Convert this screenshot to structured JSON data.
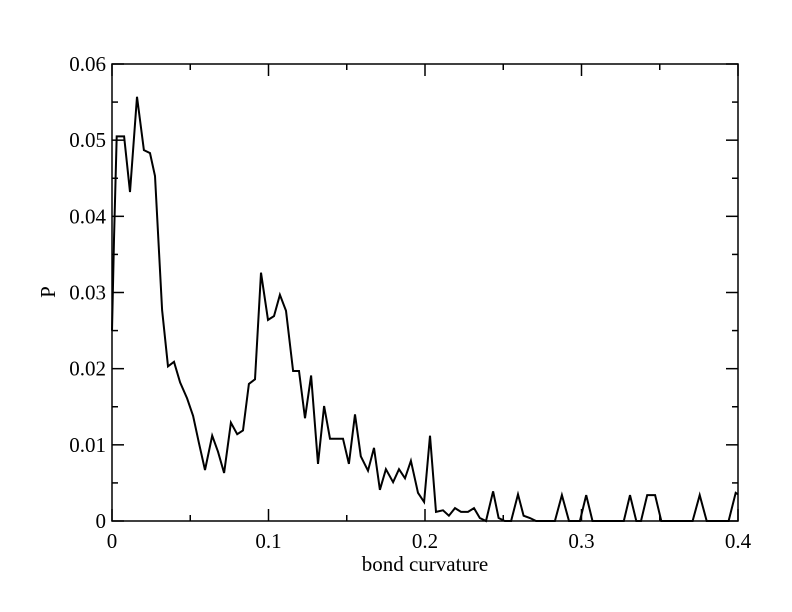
{
  "chart_data": {
    "type": "line",
    "xlabel": "bond curvature",
    "ylabel": "P",
    "x": [
      0,
      0.0013,
      0.003,
      0.0077,
      0.0115,
      0.016,
      0.0204,
      0.0243,
      0.0275,
      0.032,
      0.0358,
      0.0396,
      0.0435,
      0.048,
      0.0518,
      0.0556,
      0.0594,
      0.064,
      0.0677,
      0.0716,
      0.076,
      0.08,
      0.0837,
      0.0875,
      0.0914,
      0.0952,
      0.0997,
      0.1035,
      0.1073,
      0.1112,
      0.1157,
      0.1195,
      0.1233,
      0.1272,
      0.1316,
      0.1355,
      0.1393,
      0.143,
      0.1476,
      0.1514,
      0.1553,
      0.159,
      0.1636,
      0.1674,
      0.1712,
      0.175,
      0.1796,
      0.1834,
      0.1872,
      0.191,
      0.1955,
      0.1994,
      0.2032,
      0.207,
      0.2115,
      0.2153,
      0.2192,
      0.223,
      0.2275,
      0.2313,
      0.235,
      0.239,
      0.2435,
      0.247,
      0.251,
      0.255,
      0.2594,
      0.263,
      0.267,
      0.271,
      0.283,
      0.2875,
      0.292,
      0.299,
      0.303,
      0.307,
      0.327,
      0.331,
      0.335,
      0.338,
      0.342,
      0.347,
      0.351,
      0.371,
      0.3755,
      0.38,
      0.394,
      0.3985,
      0.4
    ],
    "values": [
      0.025,
      0.037,
      0.0505,
      0.0505,
      0.0432,
      0.0557,
      0.0487,
      0.0483,
      0.0453,
      0.0277,
      0.0203,
      0.0209,
      0.0182,
      0.0161,
      0.0138,
      0.0102,
      0.0067,
      0.0112,
      0.0091,
      0.0063,
      0.0129,
      0.0114,
      0.0119,
      0.018,
      0.0186,
      0.0326,
      0.0264,
      0.0269,
      0.0297,
      0.0276,
      0.0197,
      0.0197,
      0.0135,
      0.0191,
      0.0075,
      0.0151,
      0.0108,
      0.0108,
      0.0108,
      0.0075,
      0.014,
      0.0085,
      0.0066,
      0.0096,
      0.0041,
      0.0068,
      0.0051,
      0.0068,
      0.0056,
      0.0079,
      0.0037,
      0.0025,
      0.0112,
      0.0012,
      0.0014,
      0.0007,
      0.0017,
      0.0012,
      0.0012,
      0.0017,
      0.0004,
      0,
      0.0039,
      0.0004,
      0,
      0,
      0.0035,
      0.0007,
      0.0004,
      0,
      0,
      0.0034,
      0,
      0,
      0.0034,
      0,
      0,
      0.0034,
      0,
      0,
      0.0034,
      0.0034,
      0,
      0,
      0.0034,
      0,
      0,
      0.0037,
      0.0035
    ],
    "color": "#000000",
    "xlim": [
      0,
      0.4
    ],
    "xticks": [
      0,
      0.1,
      0.2,
      0.3,
      0.4
    ],
    "ylim": [
      0,
      0.06
    ],
    "yticks": [
      0,
      0.01,
      0.02,
      0.03,
      0.04,
      0.05,
      0.06
    ]
  }
}
